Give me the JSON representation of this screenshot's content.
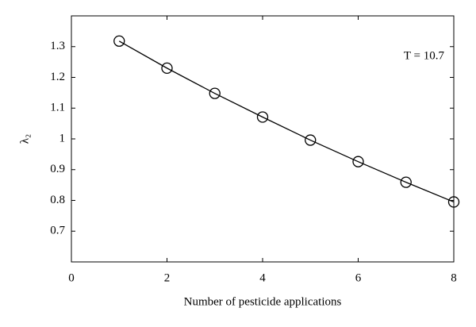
{
  "chart_data": {
    "type": "line",
    "xlabel": "Number of pesticide applications",
    "ylabel": "λ₂",
    "annotation": "T = 10.7",
    "x": [
      1,
      2,
      3,
      4,
      5,
      6,
      7,
      8
    ],
    "series": [
      {
        "color": "#000000",
        "values": [
          1.318,
          1.23,
          1.148,
          1.071,
          0.996,
          0.926,
          0.859,
          0.795
        ]
      }
    ],
    "xlim": [
      0,
      8
    ],
    "xticks": [
      0,
      2,
      4,
      6,
      8
    ],
    "ylim": [
      0.6,
      1.4
    ],
    "yticks": [
      0.7,
      0.8,
      0.9,
      1,
      1.1,
      1.2,
      1.3
    ],
    "grid": false,
    "marker": "circle"
  }
}
